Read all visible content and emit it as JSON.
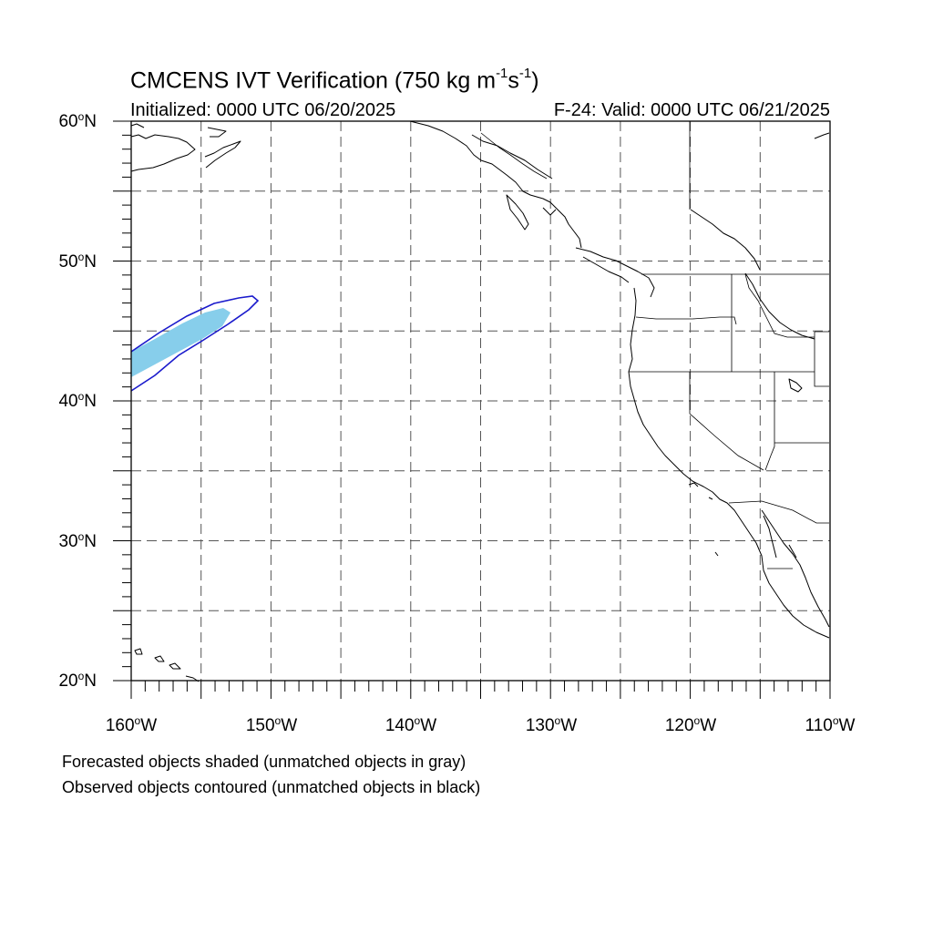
{
  "title": {
    "main": "CMCENS IVT Verification (750 kg m",
    "exp1": "-1",
    "s": "s",
    "exp2": "-1",
    "close": ")"
  },
  "initialized": "Initialized: 0000 UTC 06/20/2025",
  "valid": "F-24: Valid: 0000 UTC 06/21/2025",
  "lat_labels": [
    "60",
    "50",
    "40",
    "30",
    "20"
  ],
  "lat_suffix": "N",
  "lon_labels": [
    "160",
    "150",
    "140",
    "130",
    "120",
    "110"
  ],
  "lon_suffix": "W",
  "degree": "o",
  "notes": [
    "Forecasted objects shaded (unmatched objects in gray)",
    "Observed objects contoured (unmatched objects in black)"
  ],
  "map_extent": {
    "lon": [
      -160,
      -110
    ],
    "lat": [
      20,
      60
    ]
  },
  "colors": {
    "forecast_fill": "#87ceeb",
    "observed_contour": "#1a1acc",
    "grid": "#555555",
    "coast": "#000000"
  }
}
